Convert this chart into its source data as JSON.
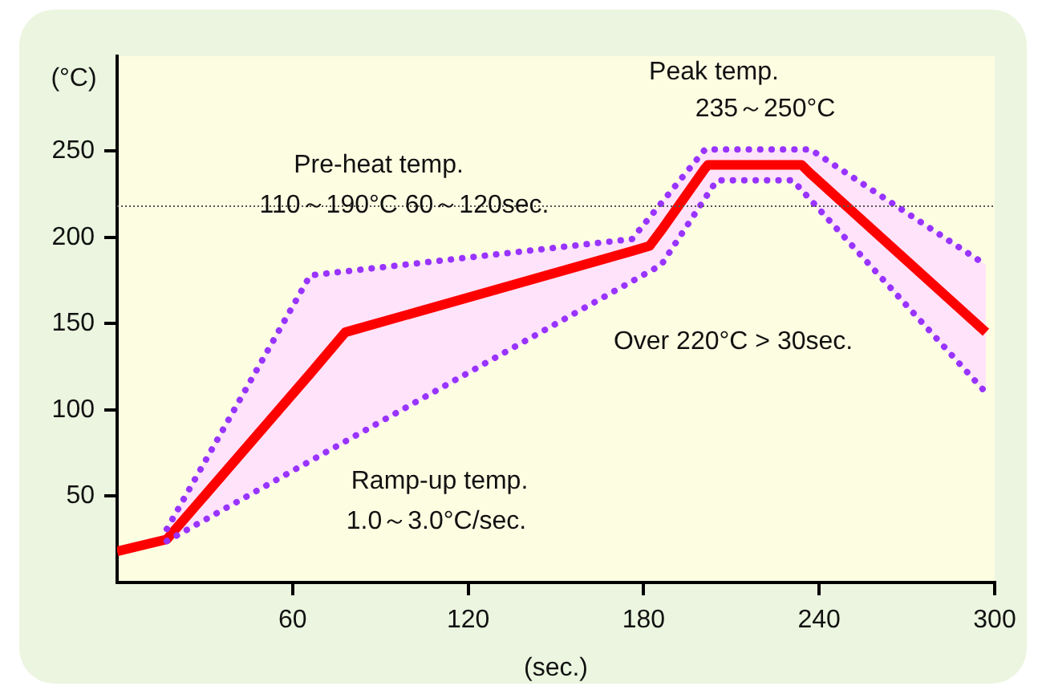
{
  "chart_data": {
    "type": "line",
    "xlabel": "(sec.)",
    "ylabel": "(°C)",
    "xlim": [
      0,
      300
    ],
    "xticks": [
      60,
      120,
      180,
      240,
      300
    ],
    "ylim": [
      0,
      305
    ],
    "yticks": [
      50,
      100,
      150,
      200,
      250
    ],
    "grid": false,
    "legend": false,
    "marker": "none",
    "series": [
      {
        "color": "#ff0000",
        "line_style": "solid",
        "x": [
          0,
          17,
          18,
          66,
          78,
          176,
          182,
          186,
          201,
          202,
          205,
          231,
          234,
          237,
          297
        ],
        "values": [
          18,
          25,
          27,
          121,
          145,
          192,
          195,
          204,
          240,
          242,
          242,
          242,
          242,
          237,
          145
        ],
        "lower": [
          null,
          24,
          25,
          70,
          81,
          174,
          180,
          184,
          223,
          226,
          233,
          233,
          227,
          221,
          110
        ],
        "upper": [
          null,
          31,
          34,
          178,
          180,
          199,
          211,
          220,
          251,
          251,
          251,
          251,
          251,
          251,
          184
        ]
      },
      {
        "color": "#9933ff",
        "line_style": "dotted",
        "x": [
          17,
          66,
          176,
          201,
          237,
          297
        ],
        "values": [
          31,
          178,
          199,
          251,
          251,
          184
        ]
      },
      {
        "color": "#9933ff",
        "line_style": "dotted",
        "x": [
          17,
          186,
          205,
          231,
          297
        ],
        "values": [
          24,
          184,
          233,
          233,
          110
        ]
      }
    ],
    "ref_lines": [
      {
        "axis": "y",
        "value": 218,
        "color": "#555555",
        "line_style": "dotted"
      }
    ],
    "annotations": [
      "Pre-heat temp.",
      "110～190°C 60～120sec.",
      "Peak temp.",
      "235～250°C",
      "Over 220°C > 30sec.",
      "Ramp-up temp.",
      "1.0～3.0°C/sec."
    ]
  }
}
